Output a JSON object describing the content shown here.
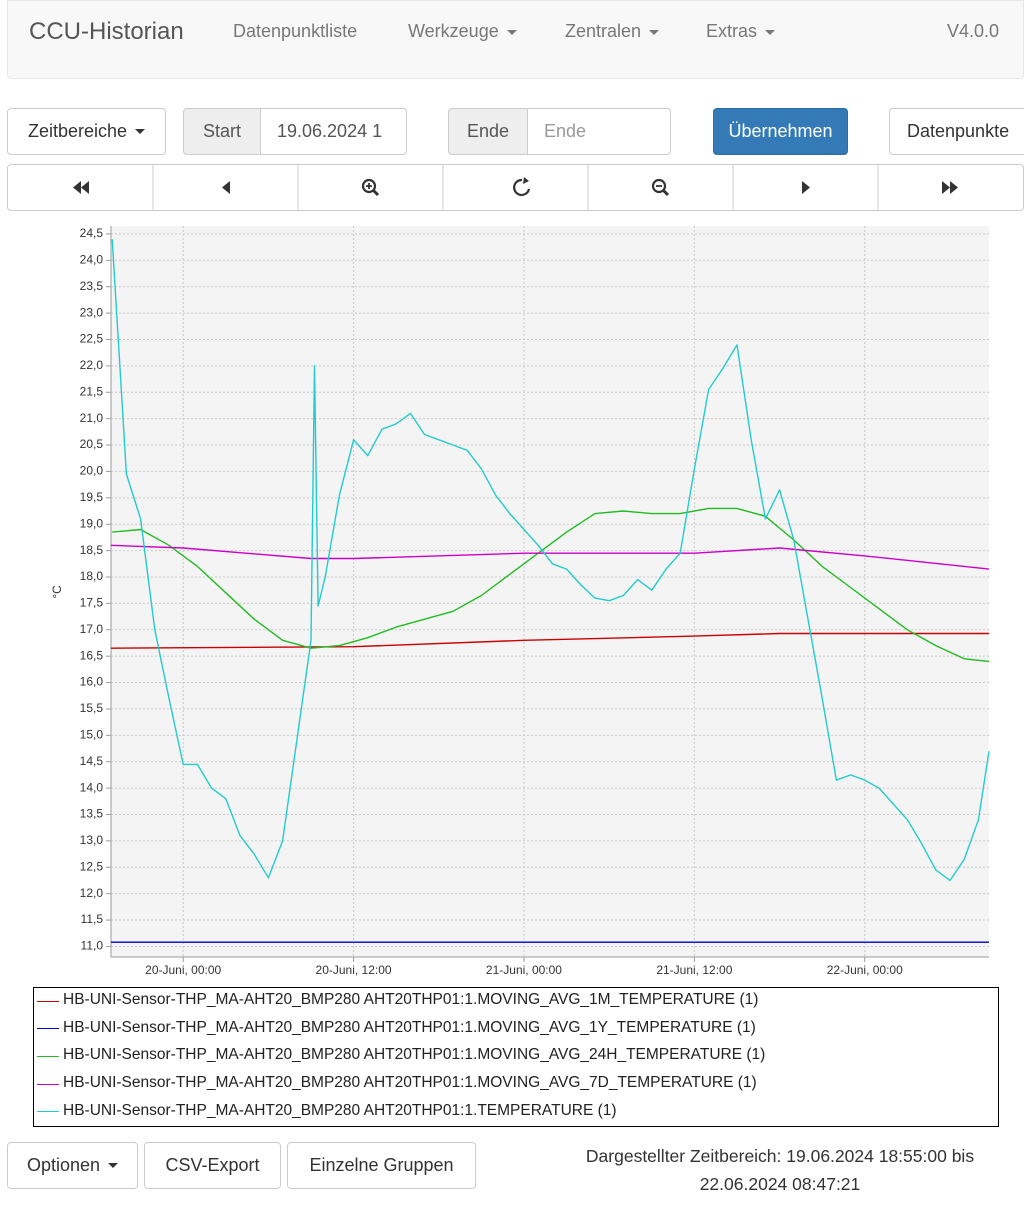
{
  "navbar": {
    "brand": "CCU-Historian",
    "items": [
      "Datenpunktliste",
      "Werkzeuge",
      "Zentralen",
      "Extras"
    ],
    "version": "V4.0.0"
  },
  "toolbar": {
    "ranges": "Zeitbereiche",
    "start_label": "Start",
    "start_value": "19.06.2024 1",
    "end_label": "Ende",
    "end_placeholder": "Ende",
    "apply": "Übernehmen",
    "datapoints": "Datenpunkte"
  },
  "chart_data": {
    "type": "line",
    "y_label": "°C",
    "grid": true,
    "xlim": [
      "19-Juni, 18:55",
      "22-Juni, 08:45"
    ],
    "xticks": [
      "20-Juni, 00:00",
      "20-Juni, 12:00",
      "21-Juni, 00:00",
      "21-Juni, 12:00",
      "22-Juni, 00:00"
    ],
    "ylim": [
      10.8,
      24.65
    ],
    "yticks": [
      {
        "value": 11,
        "label": "11,0"
      },
      {
        "value": 11.5,
        "label": "11,5"
      },
      {
        "value": 12,
        "label": "12,0"
      },
      {
        "value": 12.5,
        "label": "12,5"
      },
      {
        "value": 13,
        "label": "13,0"
      },
      {
        "value": 13.5,
        "label": "13,5"
      },
      {
        "value": 14,
        "label": "14,0"
      },
      {
        "value": 14.5,
        "label": "14,5"
      },
      {
        "value": 15,
        "label": "15,0"
      },
      {
        "value": 15.5,
        "label": "15,5"
      },
      {
        "value": 16,
        "label": "16,0"
      },
      {
        "value": 16.5,
        "label": "16,5"
      },
      {
        "value": 17,
        "label": "17,0"
      },
      {
        "value": 17.5,
        "label": "17,5"
      },
      {
        "value": 18,
        "label": "18,0"
      },
      {
        "value": 18.5,
        "label": "18,5"
      },
      {
        "value": 19,
        "label": "19,0"
      },
      {
        "value": 19.5,
        "label": "19,5"
      },
      {
        "value": 20,
        "label": "20,0"
      },
      {
        "value": 20.5,
        "label": "20,5"
      },
      {
        "value": 21,
        "label": "21,0"
      },
      {
        "value": 21.5,
        "label": "21,5"
      },
      {
        "value": 22,
        "label": "22,0"
      },
      {
        "value": 22.5,
        "label": "22,5"
      },
      {
        "value": 23,
        "label": "23,0"
      },
      {
        "value": 23.5,
        "label": "23,5"
      },
      {
        "value": 24,
        "label": "24,0"
      },
      {
        "value": 24.5,
        "label": "24,5"
      }
    ],
    "series": [
      {
        "name": "HB-UNI-Sensor-THP_MA-AHT20_BMP280 AHT20THP01:1.MOVING_AVG_1M_TEMPERATURE (1)",
        "color": "#cc0000",
        "x": [
          "19-Juni, 18:55",
          "20-Juni, 12:00",
          "21-Juni, 00:00",
          "21-Juni, 12:00",
          "21-Juni, 18:00",
          "22-Juni, 08:45"
        ],
        "values": [
          16.65,
          16.68,
          16.8,
          16.88,
          16.93,
          16.93
        ]
      },
      {
        "name": "HB-UNI-Sensor-THP_MA-AHT20_BMP280 AHT20THP01:1.MOVING_AVG_1Y_TEMPERATURE (1)",
        "color": "#0000cc",
        "x": [
          "19-Juni, 18:55",
          "22-Juni, 08:45"
        ],
        "values": [
          11.08,
          11.08
        ]
      },
      {
        "name": "HB-UNI-Sensor-THP_MA-AHT20_BMP280 AHT20THP01:1.MOVING_AVG_24H_TEMPERATURE (1)",
        "color": "#22bb22",
        "x": [
          "19-Juni, 19:00",
          "19-Juni, 21:00",
          "19-Juni, 23:00",
          "20-Juni, 01:00",
          "20-Juni, 03:00",
          "20-Juni, 05:00",
          "20-Juni, 07:00",
          "20-Juni, 09:00",
          "20-Juni, 11:00",
          "20-Juni, 13:00",
          "20-Juni, 15:00",
          "20-Juni, 17:00",
          "20-Juni, 19:00",
          "20-Juni, 21:00",
          "20-Juni, 23:00",
          "21-Juni, 01:00",
          "21-Juni, 03:00",
          "21-Juni, 05:00",
          "21-Juni, 07:00",
          "21-Juni, 09:00",
          "21-Juni, 11:00",
          "21-Juni, 13:00",
          "21-Juni, 15:00",
          "21-Juni, 17:00",
          "21-Juni, 19:00",
          "21-Juni, 21:00",
          "21-Juni, 23:00",
          "22-Juni, 01:00",
          "22-Juni, 03:00",
          "22-Juni, 05:00",
          "22-Juni, 07:00",
          "22-Juni, 08:45"
        ],
        "values": [
          18.85,
          18.9,
          18.6,
          18.2,
          17.7,
          17.2,
          16.8,
          16.65,
          16.7,
          16.85,
          17.05,
          17.2,
          17.35,
          17.65,
          18.05,
          18.45,
          18.85,
          19.2,
          19.25,
          19.2,
          19.2,
          19.3,
          19.3,
          19.15,
          18.7,
          18.2,
          17.8,
          17.4,
          17.0,
          16.7,
          16.45,
          16.4
        ]
      },
      {
        "name": "HB-UNI-Sensor-THP_MA-AHT20_BMP280 AHT20THP01:1.MOVING_AVG_7D_TEMPERATURE (1)",
        "color": "#cc00cc",
        "x": [
          "19-Juni, 18:55",
          "20-Juni, 00:00",
          "20-Juni, 09:00",
          "20-Juni, 12:00",
          "21-Juni, 00:00",
          "21-Juni, 12:00",
          "21-Juni, 18:00",
          "22-Juni, 00:00",
          "22-Juni, 08:45"
        ],
        "values": [
          18.6,
          18.55,
          18.35,
          18.35,
          18.45,
          18.45,
          18.55,
          18.4,
          18.15
        ]
      },
      {
        "name": "HB-UNI-Sensor-THP_MA-AHT20_BMP280 AHT20THP01:1.TEMPERATURE (1)",
        "color": "#22cccc",
        "x": [
          "19-Juni, 19:00",
          "19-Juni, 20:00",
          "19-Juni, 21:00",
          "19-Juni, 22:00",
          "19-Juni, 23:00",
          "20-Juni, 00:00",
          "20-Juni, 01:00",
          "20-Juni, 02:00",
          "20-Juni, 03:00",
          "20-Juni, 04:00",
          "20-Juni, 05:00",
          "20-Juni, 06:00",
          "20-Juni, 07:00",
          "20-Juni, 08:00",
          "20-Juni, 09:00",
          "20-Juni, 09:15",
          "20-Juni, 09:30",
          "20-Juni, 10:00",
          "20-Juni, 11:00",
          "20-Juni, 12:00",
          "20-Juni, 13:00",
          "20-Juni, 14:00",
          "20-Juni, 15:00",
          "20-Juni, 16:00",
          "20-Juni, 17:00",
          "20-Juni, 18:00",
          "20-Juni, 19:00",
          "20-Juni, 20:00",
          "20-Juni, 21:00",
          "20-Juni, 22:00",
          "20-Juni, 23:00",
          "21-Juni, 00:00",
          "21-Juni, 01:00",
          "21-Juni, 02:00",
          "21-Juni, 03:00",
          "21-Juni, 04:00",
          "21-Juni, 05:00",
          "21-Juni, 06:00",
          "21-Juni, 07:00",
          "21-Juni, 08:00",
          "21-Juni, 09:00",
          "21-Juni, 10:00",
          "21-Juni, 11:00",
          "21-Juni, 12:00",
          "21-Juni, 13:00",
          "21-Juni, 14:00",
          "21-Juni, 15:00",
          "21-Juni, 16:00",
          "21-Juni, 17:00",
          "21-Juni, 18:00",
          "21-Juni, 19:00",
          "21-Juni, 20:00",
          "21-Juni, 21:00",
          "21-Juni, 22:00",
          "21-Juni, 23:00",
          "22-Juni, 00:00",
          "22-Juni, 01:00",
          "22-Juni, 02:00",
          "22-Juni, 03:00",
          "22-Juni, 04:00",
          "22-Juni, 05:00",
          "22-Juni, 06:00",
          "22-Juni, 07:00",
          "22-Juni, 08:00",
          "22-Juni, 08:45"
        ],
        "values": [
          24.4,
          19.95,
          19.1,
          17.0,
          15.7,
          14.45,
          14.45,
          14.0,
          13.8,
          13.1,
          12.75,
          12.3,
          13.0,
          14.9,
          16.8,
          22.0,
          17.45,
          18.0,
          19.55,
          20.6,
          20.3,
          20.8,
          20.9,
          21.1,
          20.7,
          20.6,
          20.5,
          20.4,
          20.05,
          19.55,
          19.2,
          18.9,
          18.6,
          18.25,
          18.15,
          17.85,
          17.6,
          17.55,
          17.65,
          17.95,
          17.75,
          18.15,
          18.45,
          20.05,
          21.55,
          21.95,
          22.4,
          20.6,
          19.1,
          19.65,
          18.7,
          17.2,
          15.7,
          14.15,
          14.25,
          14.15,
          14.0,
          13.7,
          13.4,
          12.95,
          12.45,
          12.25,
          12.65,
          13.4,
          14.7
        ]
      }
    ]
  },
  "footer": {
    "options": "Optionen",
    "csv": "CSV-Export",
    "groups": "Einzelne Gruppen",
    "range_text": "Dargestellter Zeitbereich: 19.06.2024 18:55:00 bis 22.06.2024 08:47:21"
  }
}
